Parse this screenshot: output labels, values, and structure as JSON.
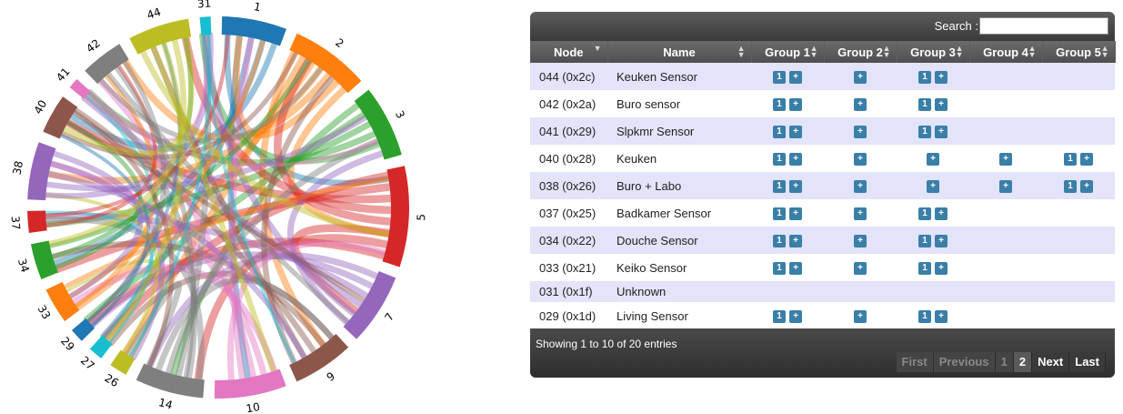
{
  "chord": {
    "groups": [
      {
        "label": "1",
        "color": "#1f77b4"
      },
      {
        "label": "2",
        "color": "#ff7f0e"
      },
      {
        "label": "3",
        "color": "#2ca02c"
      },
      {
        "label": "5",
        "color": "#d62728"
      },
      {
        "label": "7",
        "color": "#9467bd"
      },
      {
        "label": "9",
        "color": "#8c564b"
      },
      {
        "label": "10",
        "color": "#e377c2"
      },
      {
        "label": "14",
        "color": "#7f7f7f"
      },
      {
        "label": "26",
        "color": "#bcbd22"
      },
      {
        "label": "27",
        "color": "#17becf"
      },
      {
        "label": "29",
        "color": "#1f77b4"
      },
      {
        "label": "33",
        "color": "#ff7f0e"
      },
      {
        "label": "34",
        "color": "#2ca02c"
      },
      {
        "label": "37",
        "color": "#d62728"
      },
      {
        "label": "38",
        "color": "#9467bd"
      },
      {
        "label": "40",
        "color": "#8c564b"
      },
      {
        "label": "41",
        "color": "#e377c2"
      },
      {
        "label": "42",
        "color": "#7f7f7f"
      },
      {
        "label": "44",
        "color": "#bcbd22"
      },
      {
        "label": "31",
        "color": "#17becf"
      }
    ]
  },
  "search": {
    "label": "Search :",
    "value": ""
  },
  "table": {
    "columns": [
      "Node",
      "Name",
      "Group 1",
      "Group 2",
      "Group 3",
      "Group 4",
      "Group 5"
    ],
    "rows": [
      {
        "node": "044 (0x2c)",
        "name": "Keuken Sensor",
        "g1": [
          "1",
          "+"
        ],
        "g2": [
          "+"
        ],
        "g3": [
          "1",
          "+"
        ],
        "g4": [],
        "g5": []
      },
      {
        "node": "042 (0x2a)",
        "name": "Buro sensor",
        "g1": [
          "1",
          "+"
        ],
        "g2": [
          "+"
        ],
        "g3": [
          "1",
          "+"
        ],
        "g4": [],
        "g5": []
      },
      {
        "node": "041 (0x29)",
        "name": "Slpkmr Sensor",
        "g1": [
          "1",
          "+"
        ],
        "g2": [
          "+"
        ],
        "g3": [
          "1",
          "+"
        ],
        "g4": [],
        "g5": []
      },
      {
        "node": "040 (0x28)",
        "name": "Keuken",
        "g1": [
          "1",
          "+"
        ],
        "g2": [
          "+"
        ],
        "g3": [
          "+"
        ],
        "g4": [
          "+"
        ],
        "g5": [
          "1",
          "+"
        ]
      },
      {
        "node": "038 (0x26)",
        "name": "Buro + Labo",
        "g1": [
          "1",
          "+"
        ],
        "g2": [
          "+"
        ],
        "g3": [
          "+"
        ],
        "g4": [
          "+"
        ],
        "g5": [
          "1",
          "+"
        ]
      },
      {
        "node": "037 (0x25)",
        "name": "Badkamer Sensor",
        "g1": [
          "1",
          "+"
        ],
        "g2": [
          "+"
        ],
        "g3": [
          "1",
          "+"
        ],
        "g4": [],
        "g5": []
      },
      {
        "node": "034 (0x22)",
        "name": "Douche Sensor",
        "g1": [
          "1",
          "+"
        ],
        "g2": [
          "+"
        ],
        "g3": [
          "1",
          "+"
        ],
        "g4": [],
        "g5": []
      },
      {
        "node": "033 (0x21)",
        "name": "Keiko Sensor",
        "g1": [
          "1",
          "+"
        ],
        "g2": [
          "+"
        ],
        "g3": [
          "1",
          "+"
        ],
        "g4": [],
        "g5": []
      },
      {
        "node": "031 (0x1f)",
        "name": "Unknown",
        "g1": [],
        "g2": [],
        "g3": [],
        "g4": [],
        "g5": []
      },
      {
        "node": "029 (0x1d)",
        "name": "Living Sensor",
        "g1": [
          "1",
          "+"
        ],
        "g2": [
          "+"
        ],
        "g3": [
          "1",
          "+"
        ],
        "g4": [],
        "g5": []
      }
    ]
  },
  "footer": {
    "info": "Showing 1 to 10 of 20 entries",
    "first": "First",
    "previous": "Previous",
    "page1": "1",
    "page2": "2",
    "next": "Next",
    "last": "Last"
  }
}
